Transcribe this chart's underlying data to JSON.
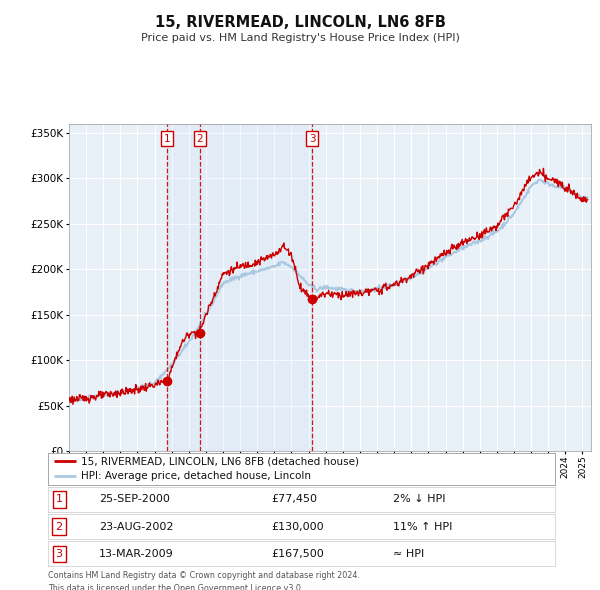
{
  "title": "15, RIVERMEAD, LINCOLN, LN6 8FB",
  "subtitle": "Price paid vs. HM Land Registry's House Price Index (HPI)",
  "hpi_color": "#aac8e0",
  "price_color": "#cc0000",
  "plot_bg": "#e8f0f8",
  "purchases": [
    {
      "num": 1,
      "date": "25-SEP-2000",
      "price": 77450,
      "year": 2000.73,
      "hpi_note": "2% ↓ HPI"
    },
    {
      "num": 2,
      "date": "23-AUG-2002",
      "price": 130000,
      "year": 2002.64,
      "hpi_note": "11% ↑ HPI"
    },
    {
      "num": 3,
      "date": "13-MAR-2009",
      "price": 167500,
      "year": 2009.2,
      "hpi_note": "≈ HPI"
    }
  ],
  "legend_line1": "15, RIVERMEAD, LINCOLN, LN6 8FB (detached house)",
  "legend_line2": "HPI: Average price, detached house, Lincoln",
  "footnote1": "Contains HM Land Registry data © Crown copyright and database right 2024.",
  "footnote2": "This data is licensed under the Open Government Licence v3.0.",
  "xmin": 1995,
  "xmax": 2025.5,
  "ymin": 0,
  "ymax": 360000,
  "yticks": [
    0,
    50000,
    100000,
    150000,
    200000,
    250000,
    300000,
    350000
  ]
}
